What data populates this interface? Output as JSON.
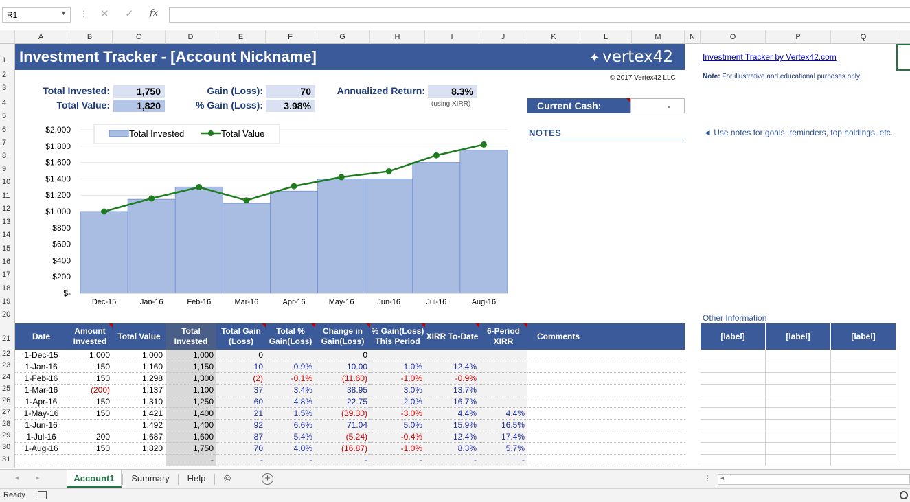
{
  "formula_bar": {
    "name_box": "R1",
    "fx": "fx",
    "cancel": "✕",
    "enter": "✓",
    "dots": "⋮"
  },
  "columns": [
    "A",
    "B",
    "C",
    "D",
    "E",
    "F",
    "G",
    "H",
    "I",
    "J",
    "K",
    "L",
    "M",
    "N",
    "O",
    "P",
    "Q"
  ],
  "rows": [
    "1",
    "2",
    "3",
    "4",
    "5",
    "6",
    "7",
    "8",
    "9",
    "10",
    "11",
    "12",
    "13",
    "14",
    "15",
    "16",
    "17",
    "18",
    "19",
    "20",
    "21",
    "22",
    "23",
    "24",
    "25",
    "26",
    "27",
    "28",
    "29",
    "30",
    "31"
  ],
  "title": "Investment Tracker - [Account Nickname]",
  "logo": "vertex42",
  "logo_mark": "✦",
  "copyright": "© 2017 Vertex42 LLC",
  "summary": {
    "total_invested_label": "Total Invested:",
    "total_invested": "1,750",
    "total_value_label": "Total Value:",
    "total_value": "1,820",
    "gain_label": "Gain (Loss):",
    "gain": "70",
    "pct_gain_label": "% Gain (Loss):",
    "pct_gain": "3.98%",
    "annualized_label": "Annualized Return:",
    "annualized": "8.3%",
    "xirr_note": "(using XIRR)"
  },
  "current_cash": {
    "label": "Current Cash:",
    "value": "-"
  },
  "notes": {
    "title": "NOTES",
    "hint": "◄ Use notes for goals, reminders, top holdings, etc."
  },
  "side": {
    "link": "Investment Tracker by Vertex42.com",
    "note_bold": "Note:",
    "note_text": " For illustrative and educational purposes only.",
    "other_info": "Other Information",
    "labels": [
      "[label]",
      "[label]",
      "[label]"
    ]
  },
  "chart_data": {
    "type": "bar",
    "categories": [
      "Dec-15",
      "Jan-16",
      "Feb-16",
      "Mar-16",
      "Apr-16",
      "May-16",
      "Jun-16",
      "Jul-16",
      "Aug-16"
    ],
    "series": [
      {
        "name": "Total Invested",
        "type": "bar",
        "values": [
          1000,
          1150,
          1300,
          1100,
          1250,
          1400,
          1400,
          1600,
          1750
        ]
      },
      {
        "name": "Total Value",
        "type": "line",
        "values": [
          1000,
          1160,
          1298,
          1137,
          1310,
          1421,
          1492,
          1687,
          1820
        ]
      }
    ],
    "ylim": [
      0,
      2000
    ],
    "yticks": [
      "$-",
      "$200",
      "$400",
      "$600",
      "$800",
      "$1,000",
      "$1,200",
      "$1,400",
      "$1,600",
      "$1,800",
      "$2,000"
    ],
    "legend": "top-left",
    "grid": true,
    "colors": {
      "bar": "#a9bce2",
      "bar_edge": "#6f8fcf",
      "line": "#1e7b1e"
    }
  },
  "table": {
    "headers": [
      "Date",
      "Amount Invested",
      "Total Value",
      "Total Invested",
      "Total Gain (Loss)",
      "Total % Gain(Loss)",
      "Change in Gain(Loss)",
      "% Gain(Loss) This Period",
      "XIRR To-Date",
      "6-Period XIRR",
      "Comments"
    ],
    "rows": [
      [
        "1-Dec-15",
        "1,000",
        "1,000",
        "1,000",
        "0",
        "",
        "0",
        "",
        "",
        "",
        ""
      ],
      [
        "1-Jan-16",
        "150",
        "1,160",
        "1,150",
        "10",
        "0.9%",
        "10.00",
        "1.0%",
        "12.4%",
        "",
        ""
      ],
      [
        "1-Feb-16",
        "150",
        "1,298",
        "1,300",
        "(2)",
        "-0.1%",
        "(11.60)",
        "-1.0%",
        "-0.9%",
        "",
        ""
      ],
      [
        "1-Mar-16",
        "(200)",
        "1,137",
        "1,100",
        "37",
        "3.4%",
        "38.95",
        "3.0%",
        "13.7%",
        "",
        ""
      ],
      [
        "1-Apr-16",
        "150",
        "1,310",
        "1,250",
        "60",
        "4.8%",
        "22.75",
        "2.0%",
        "16.7%",
        "",
        ""
      ],
      [
        "1-May-16",
        "150",
        "1,421",
        "1,400",
        "21",
        "1.5%",
        "(39.30)",
        "-3.0%",
        "4.4%",
        "4.4%",
        ""
      ],
      [
        "1-Jun-16",
        "",
        "1,492",
        "1,400",
        "92",
        "6.6%",
        "71.04",
        "5.0%",
        "15.9%",
        "16.5%",
        ""
      ],
      [
        "1-Jul-16",
        "200",
        "1,687",
        "1,600",
        "87",
        "5.4%",
        "(5.24)",
        "-0.4%",
        "12.4%",
        "17.4%",
        ""
      ],
      [
        "1-Aug-16",
        "150",
        "1,820",
        "1,750",
        "70",
        "4.0%",
        "(16.87)",
        "-1.0%",
        "8.3%",
        "5.7%",
        ""
      ],
      [
        "",
        "",
        "",
        "-",
        "-",
        "-",
        "-",
        "-",
        "-",
        "-",
        ""
      ]
    ]
  },
  "tabs": [
    "Account1",
    "Summary",
    "Help",
    "©"
  ],
  "add_sheet": "+",
  "status": "Ready"
}
